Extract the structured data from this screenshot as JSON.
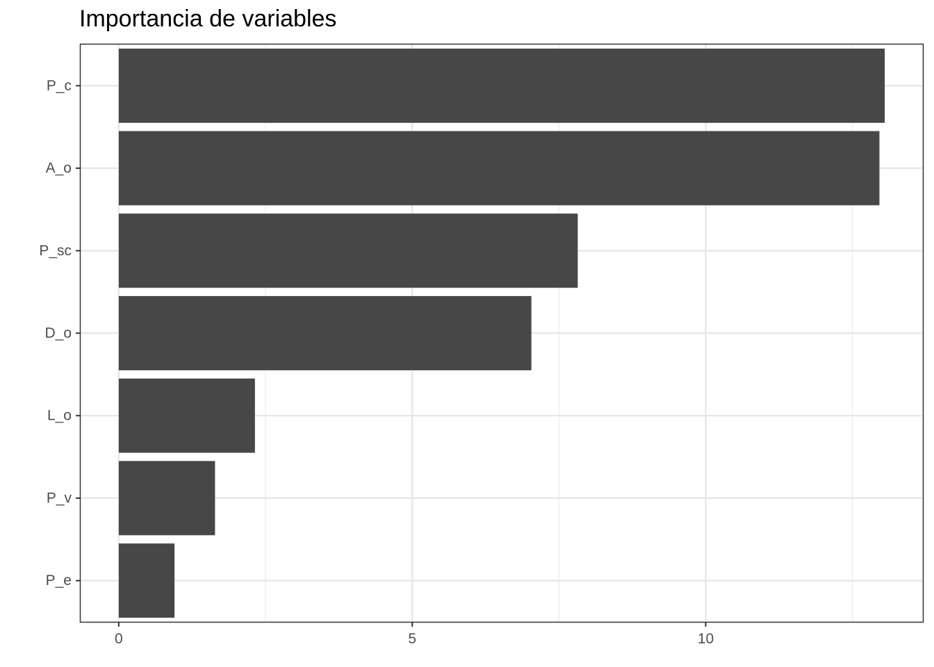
{
  "chart_data": {
    "type": "bar",
    "orientation": "horizontal",
    "title": "Importancia de variables",
    "xlabel": "",
    "ylabel": "",
    "categories": [
      "P_c",
      "A_o",
      "P_sc",
      "D_o",
      "L_o",
      "P_v",
      "P_e"
    ],
    "values": [
      13.05,
      12.96,
      7.82,
      7.03,
      2.32,
      1.64,
      0.95
    ],
    "xlim": [
      -0.65,
      13.7
    ],
    "x_ticks": [
      0,
      5,
      10
    ],
    "x_minor_ticks": [
      2.5,
      7.5,
      12.5
    ],
    "grid": true,
    "legend": "none",
    "bar_color": "#474747"
  }
}
